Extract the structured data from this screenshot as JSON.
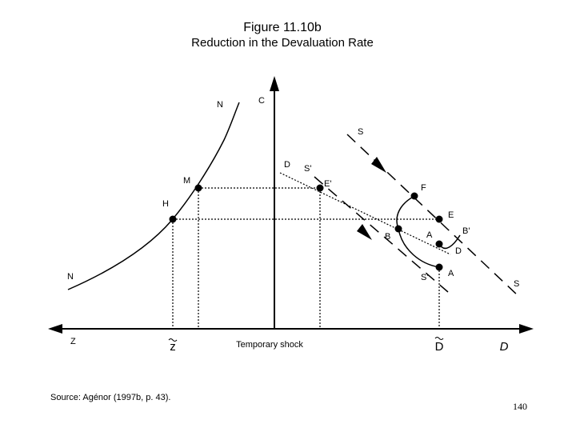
{
  "figure": {
    "title": "Figure 11.10b",
    "subtitle": "Reduction in the Devaluation Rate"
  },
  "axes": {
    "vertical": "C",
    "left": "Z",
    "temporary_shock": "Temporary shock",
    "z_tilde": "z",
    "d_tilde": "D",
    "right": "D"
  },
  "curves": {
    "n_top": "N",
    "n_bottom": "N",
    "s_top": "S",
    "s_bottom": "S",
    "s_prime_top": "S'",
    "s_prime_bottom": "S'",
    "d_upper": "D",
    "d_lower": "D"
  },
  "points": {
    "M": "M",
    "H": "H",
    "E_prime": "E'",
    "F": "F",
    "E": "E",
    "B": "B",
    "A_upper": "A",
    "B_prime": "B'",
    "A_lower": "A"
  },
  "source": "Source: Agénor (1997b, p. 43).",
  "page_number": "140"
}
